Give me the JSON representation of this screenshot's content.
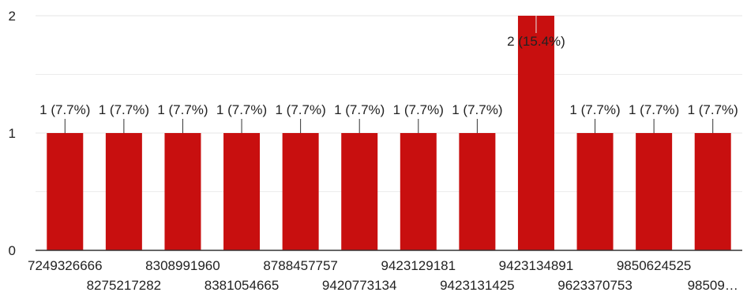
{
  "chart_data": {
    "type": "bar",
    "categories": [
      "7249326666",
      "8275217282",
      "8308991960",
      "8381054665",
      "8788457757",
      "9420773134",
      "9423129181",
      "9423131425",
      "9423134891",
      "9623370753",
      "9850624525",
      "98509…"
    ],
    "values": [
      1,
      1,
      1,
      1,
      1,
      1,
      1,
      1,
      2,
      1,
      1,
      1
    ],
    "data_labels": [
      "1 (7.7%)",
      "1 (7.7%)",
      "1 (7.7%)",
      "1 (7.7%)",
      "1 (7.7%)",
      "1 (7.7%)",
      "1 (7.7%)",
      "1 (7.7%)",
      "2 (15.4%)",
      "1 (7.7%)",
      "1 (7.7%)",
      "1 (7.7%)"
    ],
    "y_ticks": [
      "0",
      "1",
      "2"
    ],
    "ylim": [
      0,
      2
    ],
    "grid": true,
    "legend": "none",
    "colors": {
      "bar": "#c80f0f",
      "grid": "#e6e6e6",
      "axis": "#333333"
    }
  }
}
